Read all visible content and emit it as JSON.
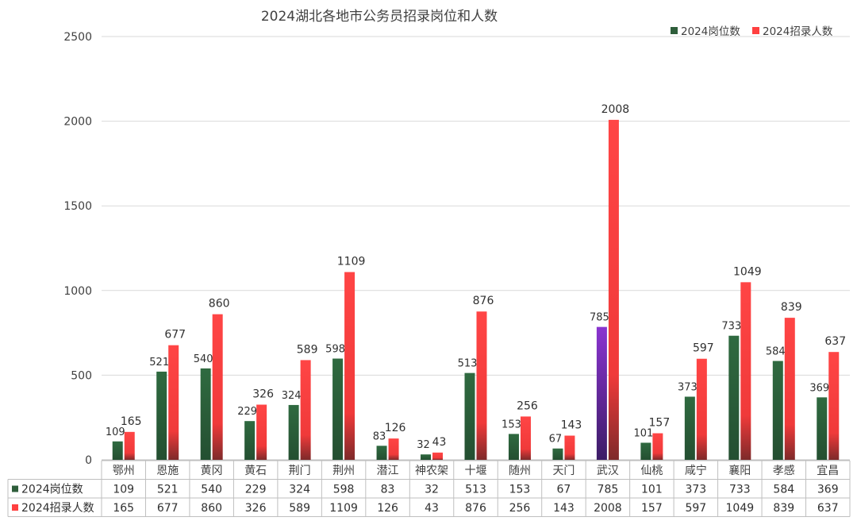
{
  "chart_data": {
    "type": "bar",
    "title": "2024湖北各地市公务员招录岗位和人数",
    "categories": [
      "鄂州",
      "恩施",
      "黄冈",
      "黄石",
      "荆门",
      "荆州",
      "潜江",
      "神农架",
      "十堰",
      "随州",
      "天门",
      "武汉",
      "仙桃",
      "咸宁",
      "襄阳",
      "孝感",
      "宜昌"
    ],
    "series": [
      {
        "name": "2024岗位数",
        "values": [
          109,
          521,
          540,
          229,
          324,
          598,
          83,
          32,
          513,
          153,
          67,
          785,
          101,
          373,
          733,
          584,
          369
        ],
        "color": "#2E5E3B",
        "highlight_index": 11,
        "highlight_color": "#7A2FB8"
      },
      {
        "name": "2024招录人数",
        "values": [
          165,
          677,
          860,
          326,
          589,
          1109,
          126,
          43,
          876,
          256,
          143,
          2008,
          157,
          597,
          1049,
          839,
          637
        ],
        "color": "#FF4040"
      }
    ],
    "ylim": [
      0,
      2500
    ],
    "yticks": [
      0,
      500,
      1000,
      1500,
      2000,
      2500
    ],
    "grid": true,
    "legend_position": "top-right",
    "data_table": true
  }
}
